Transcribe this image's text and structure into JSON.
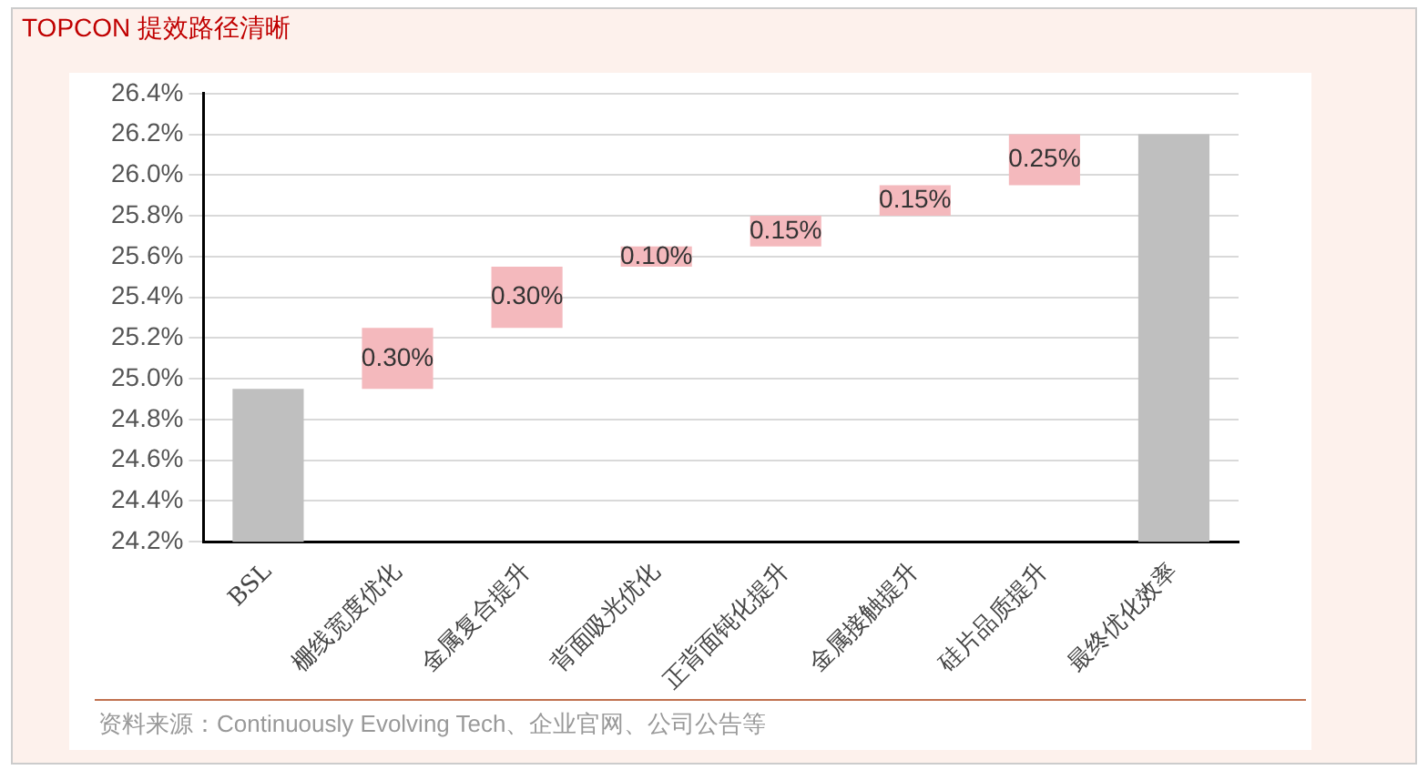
{
  "chart_data": {
    "type": "bar",
    "title": "TOPCON 提效路径清晰",
    "categories": [
      "BSL",
      "栅线宽度优化",
      "金属复合提升",
      "背面吸光优化",
      "正背面钝化提升",
      "金属接触提升",
      "硅片品质提升",
      "最终优化效率"
    ],
    "values": [
      24.95,
      0.3,
      0.3,
      0.1,
      0.15,
      0.15,
      0.25,
      26.2
    ],
    "base": [
      null,
      24.95,
      25.25,
      25.55,
      25.65,
      25.8,
      25.95,
      null
    ],
    "colors": [
      "#bfbfbf",
      "#f4b9bd",
      "#f4b9bd",
      "#f4b9bd",
      "#f4b9bd",
      "#f4b9bd",
      "#f4b9bd",
      "#bfbfbf"
    ],
    "value_labels": [
      null,
      "0.30%",
      "0.30%",
      "0.10%",
      "0.15%",
      "0.15%",
      "0.25%",
      null
    ],
    "ylim": [
      24.2,
      26.4
    ],
    "yticks": [
      {
        "value": 24.2,
        "label": "24.2%"
      },
      {
        "value": 24.4,
        "label": "24.4%"
      },
      {
        "value": 24.6,
        "label": "24.6%"
      },
      {
        "value": 24.8,
        "label": "24.8%"
      },
      {
        "value": 25.0,
        "label": "25.0%"
      },
      {
        "value": 25.2,
        "label": "25.2%"
      },
      {
        "value": 25.4,
        "label": "25.4%"
      },
      {
        "value": 25.6,
        "label": "25.6%"
      },
      {
        "value": 25.8,
        "label": "25.8%"
      },
      {
        "value": 26.0,
        "label": "26.0%"
      },
      {
        "value": 26.2,
        "label": "26.2%"
      },
      {
        "value": 26.4,
        "label": "26.4%"
      }
    ],
    "grid": "y",
    "annotations": [
      "资料来源：Continuously Evolving Tech、企业官网、公司公告等"
    ]
  }
}
